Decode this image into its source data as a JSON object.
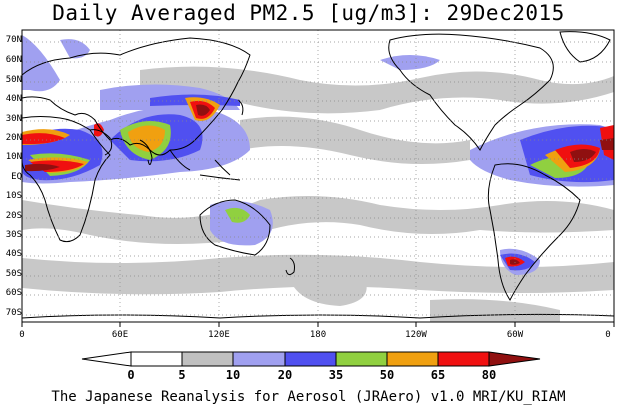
{
  "title": "Daily Averaged PM2.5 [ug/m3]: 29Dec2015",
  "lat_labels": [
    "70N",
    "60N",
    "50N",
    "40N",
    "30N",
    "20N",
    "10N",
    "EQ",
    "10S",
    "20S",
    "30S",
    "40S",
    "50S",
    "60S",
    "70S"
  ],
  "lon_labels": [
    "0",
    "60E",
    "120E",
    "180",
    "120W",
    "60W",
    "0"
  ],
  "colorbar": {
    "levels": [
      "0",
      "5",
      "10",
      "20",
      "35",
      "50",
      "65",
      "80"
    ],
    "colors": [
      "#ffffff",
      "#c0c0c0",
      "#a0a0f0",
      "#5050f0",
      "#90d040",
      "#f0a010",
      "#f01010",
      "#901010"
    ]
  },
  "footer": "The Japanese Reanalysis for Aerosol (JRAero) v1.0 MRI/KU_RIAM",
  "chart_data": {
    "type": "heatmap",
    "title": "Daily Averaged PM2.5 [ug/m3]: 29Dec2015",
    "x_range": [
      0,
      360
    ],
    "y_range": [
      -75,
      75
    ],
    "color_levels": [
      0,
      5,
      10,
      20,
      35,
      50,
      65,
      80
    ],
    "units": "ug/m3"
  }
}
